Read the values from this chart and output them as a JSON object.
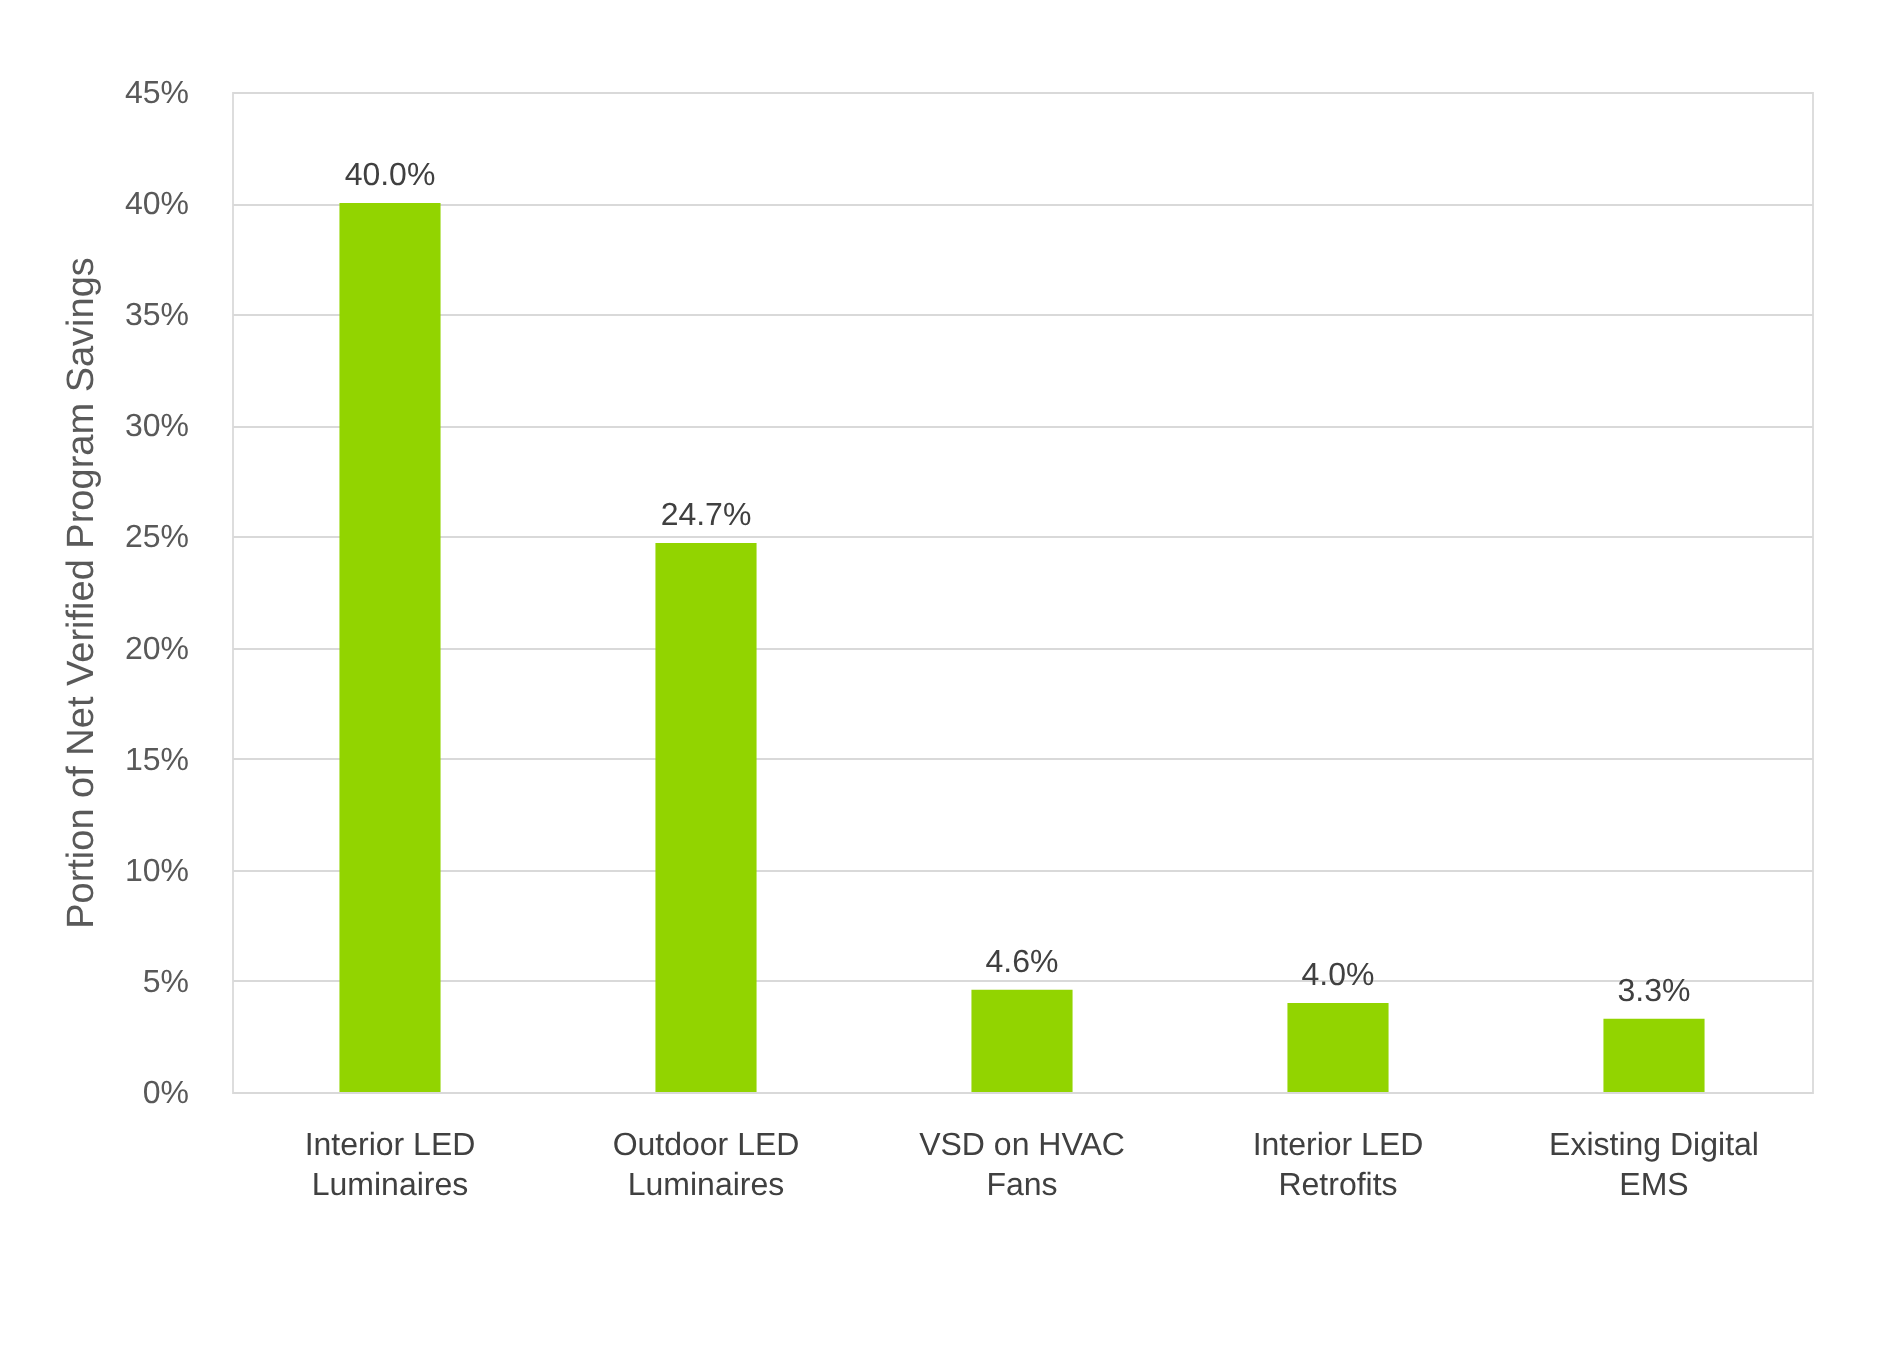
{
  "chart_data": {
    "type": "bar",
    "ylabel": "Portion of Net Verified Program Savings",
    "categories": [
      "Interior LED Luminaires",
      "Outdoor LED Luminaires",
      "VSD on HVAC Fans",
      "Interior LED Retrofits",
      "Existing Digital EMS"
    ],
    "values": [
      40.0,
      24.7,
      4.6,
      4.0,
      3.3
    ],
    "value_labels": [
      "40.0%",
      "24.7%",
      "4.6%",
      "4.0%",
      "3.3%"
    ],
    "color": "#92d400",
    "ylim": [
      0,
      45
    ],
    "yticks": [
      {
        "value": 0,
        "label": "0%"
      },
      {
        "value": 5,
        "label": "5%"
      },
      {
        "value": 10,
        "label": "10%"
      },
      {
        "value": 15,
        "label": "15%"
      },
      {
        "value": 20,
        "label": "20%"
      },
      {
        "value": 25,
        "label": "25%"
      },
      {
        "value": 30,
        "label": "30%"
      },
      {
        "value": 35,
        "label": "35%"
      },
      {
        "value": 40,
        "label": "40%"
      },
      {
        "value": 45,
        "label": "45%"
      }
    ],
    "grid": "y"
  }
}
